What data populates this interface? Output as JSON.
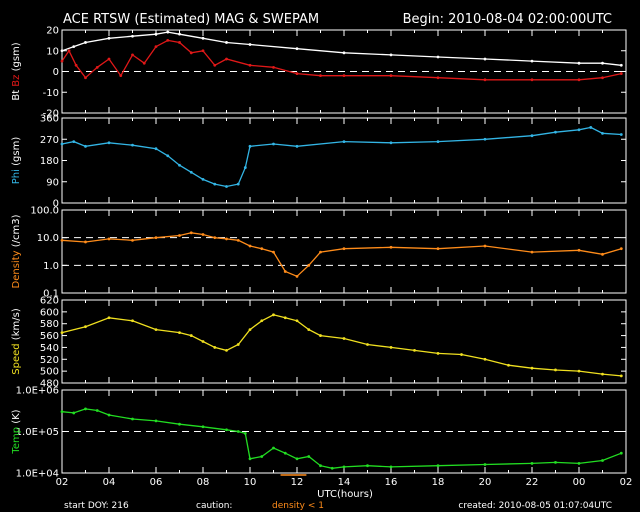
{
  "header": {
    "title": "ACE RTSW (Estimated) MAG & SWEPAM",
    "begin": "Begin: 2010-08-04 02:00:00UTC"
  },
  "footer": {
    "start_doy": "start DOY: 216",
    "caution": "caution:",
    "density_note": "density < 1",
    "created": "created: 2010-08-05 01:07:04UTC"
  },
  "colors": {
    "bt": "#ffffff",
    "bz": "#e01818",
    "phi": "#33b5e5",
    "density": "#ff8c1a",
    "speed": "#f0e020",
    "temp": "#22dd22",
    "frame": "#ffffff"
  },
  "chart_data": {
    "type": "line",
    "xlabel": "UTC(hours)",
    "x_ticks": [
      "02",
      "04",
      "06",
      "08",
      "10",
      "12",
      "14",
      "16",
      "18",
      "20",
      "22",
      "00",
      "02"
    ],
    "xlim": [
      2,
      26
    ],
    "panels": [
      {
        "id": "mag",
        "ylabel_parts": [
          {
            "text": "Bt",
            "color": "#ffffff"
          },
          {
            "text": "Bz",
            "color": "#e01818"
          },
          {
            "text": "(gsm)",
            "color": "#ffffff"
          }
        ],
        "ylim": [
          -20,
          20
        ],
        "yticks": [
          "20",
          "10",
          "0",
          "-10",
          "-20"
        ],
        "ytick_values": [
          20,
          10,
          0,
          -10,
          -20
        ],
        "dashed": [
          0
        ],
        "scale": "linear",
        "series": [
          {
            "name": "Bt",
            "color": "#ffffff",
            "x": [
              2,
              2.5,
              3,
              4,
              5,
              6,
              6.5,
              7,
              8,
              9,
              10,
              12,
              14,
              16,
              18,
              20,
              22,
              24,
              25,
              25.8
            ],
            "y": [
              10,
              12,
              14,
              16,
              17,
              18,
              19,
              18,
              16,
              14,
              13,
              11,
              9,
              8,
              7,
              6,
              5,
              4,
              4,
              3
            ]
          },
          {
            "name": "Bz",
            "color": "#e01818",
            "x": [
              2,
              2.3,
              2.6,
              3,
              3.5,
              4,
              4.5,
              5,
              5.5,
              6,
              6.5,
              7,
              7.5,
              8,
              8.5,
              9,
              10,
              11,
              12,
              13,
              14,
              16,
              18,
              20,
              22,
              24,
              25,
              25.8
            ],
            "y": [
              5,
              10,
              3,
              -3,
              2,
              6,
              -2,
              8,
              4,
              12,
              15,
              14,
              9,
              10,
              3,
              6,
              3,
              2,
              -1,
              -2,
              -2,
              -2,
              -3,
              -4,
              -4,
              -4,
              -3,
              -1
            ]
          }
        ]
      },
      {
        "id": "phi",
        "ylabel_parts": [
          {
            "text": "Phi",
            "color": "#33b5e5"
          },
          {
            "text": "(gsm)",
            "color": "#ffffff"
          }
        ],
        "ylim": [
          0,
          360
        ],
        "yticks": [
          "360",
          "270",
          "180",
          "90",
          "0"
        ],
        "ytick_values": [
          360,
          270,
          180,
          90,
          0
        ],
        "dashed": [],
        "scale": "linear",
        "series": [
          {
            "name": "Phi",
            "color": "#33b5e5",
            "x": [
              2,
              2.5,
              3,
              4,
              5,
              6,
              6.5,
              7,
              7.5,
              8,
              8.5,
              9,
              9.5,
              9.8,
              10,
              11,
              12,
              14,
              16,
              18,
              20,
              22,
              23,
              24,
              24.5,
              25,
              25.8
            ],
            "y": [
              250,
              260,
              240,
              255,
              245,
              230,
              200,
              160,
              130,
              100,
              80,
              70,
              80,
              150,
              240,
              250,
              240,
              260,
              255,
              260,
              270,
              285,
              300,
              310,
              320,
              295,
              290
            ]
          }
        ]
      },
      {
        "id": "density",
        "ylabel_parts": [
          {
            "text": "Density",
            "color": "#ff8c1a"
          },
          {
            "text": "(/cm3)",
            "color": "#ffffff"
          }
        ],
        "ylim": [
          0.1,
          100
        ],
        "yticks": [
          "100.0",
          "10.0",
          "1.0",
          "0.1"
        ],
        "ytick_values": [
          100,
          10,
          1,
          0.1
        ],
        "dashed": [
          10,
          1
        ],
        "scale": "log",
        "series": [
          {
            "name": "Density",
            "color": "#ff8c1a",
            "x": [
              2,
              3,
              4,
              5,
              6,
              7,
              7.5,
              8,
              8.5,
              9,
              9.5,
              10,
              10.5,
              11,
              11.5,
              12,
              12.5,
              13,
              14,
              16,
              18,
              20,
              22,
              24,
              25,
              25.8
            ],
            "y": [
              8,
              7,
              9,
              8,
              10,
              12,
              15,
              13,
              10,
              9,
              8,
              5,
              4,
              3,
              0.6,
              0.4,
              1,
              3,
              4,
              4.5,
              4,
              5,
              3,
              3.5,
              2.5,
              4
            ]
          }
        ]
      },
      {
        "id": "speed",
        "ylabel_parts": [
          {
            "text": "Speed",
            "color": "#f0e020"
          },
          {
            "text": "(km/s)",
            "color": "#ffffff"
          }
        ],
        "ylim": [
          480,
          620
        ],
        "yticks": [
          "620",
          "600",
          "580",
          "560",
          "540",
          "520",
          "500",
          "480"
        ],
        "ytick_values": [
          620,
          600,
          580,
          560,
          540,
          520,
          500,
          480
        ],
        "dashed": [],
        "scale": "linear",
        "series": [
          {
            "name": "Speed",
            "color": "#f0e020",
            "x": [
              2,
              3,
              4,
              5,
              6,
              7,
              7.5,
              8,
              8.5,
              9,
              9.5,
              10,
              10.5,
              11,
              11.5,
              12,
              12.5,
              13,
              14,
              15,
              16,
              17,
              18,
              19,
              20,
              21,
              22,
              23,
              24,
              25,
              25.8
            ],
            "y": [
              565,
              575,
              590,
              585,
              570,
              565,
              560,
              550,
              540,
              535,
              545,
              570,
              585,
              595,
              590,
              585,
              570,
              560,
              555,
              545,
              540,
              535,
              530,
              528,
              520,
              510,
              505,
              502,
              500,
              495,
              492
            ]
          }
        ]
      },
      {
        "id": "temp",
        "ylabel_parts": [
          {
            "text": "Temp",
            "color": "#22dd22"
          },
          {
            "text": "(K)",
            "color": "#ffffff"
          }
        ],
        "ylim": [
          10000,
          1000000
        ],
        "yticks": [
          "1.0E+06",
          "1.0E+05",
          "1.0E+04"
        ],
        "ytick_values": [
          1000000,
          100000,
          10000
        ],
        "dashed": [
          100000
        ],
        "scale": "log",
        "series": [
          {
            "name": "Temp",
            "color": "#22dd22",
            "x": [
              2,
              2.5,
              3,
              3.5,
              4,
              5,
              6,
              7,
              8,
              9,
              9.5,
              9.8,
              10,
              10.5,
              11,
              11.5,
              12,
              12.5,
              13,
              13.5,
              14,
              15,
              16,
              18,
              20,
              22,
              23,
              24,
              25,
              25.8
            ],
            "y": [
              300000,
              280000,
              350000,
              320000,
              250000,
              200000,
              180000,
              150000,
              130000,
              110000,
              100000,
              90000,
              22000,
              25000,
              40000,
              30000,
              22000,
              25000,
              15000,
              13000,
              14000,
              15000,
              14000,
              15000,
              16000,
              17000,
              18000,
              17000,
              20000,
              30000
            ]
          }
        ]
      }
    ]
  }
}
